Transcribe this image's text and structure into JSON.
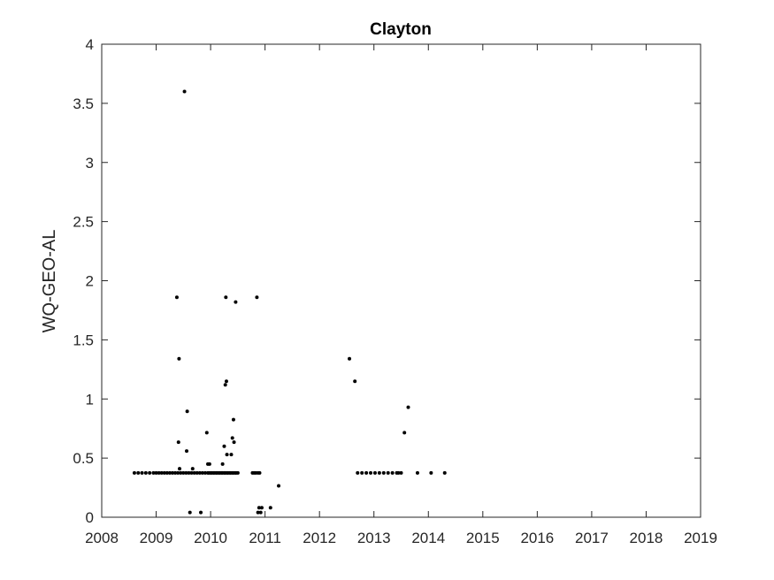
{
  "chart_data": {
    "type": "scatter",
    "title": "Clayton",
    "xlabel": "",
    "ylabel": "WQ-GEO-AL",
    "xlim": [
      2008,
      2019
    ],
    "ylim": [
      0,
      4
    ],
    "xticks": [
      "2008",
      "2009",
      "2010",
      "2011",
      "2012",
      "2013",
      "2014",
      "2015",
      "2016",
      "2017",
      "2018",
      "2019"
    ],
    "yticks": [
      "0",
      "0.5",
      "1",
      "1.5",
      "2",
      "2.5",
      "3",
      "3.5",
      "4"
    ],
    "grid": false,
    "marker_color": "#000000",
    "points": [
      [
        2008.6,
        0.375
      ],
      [
        2008.67,
        0.375
      ],
      [
        2008.74,
        0.375
      ],
      [
        2008.81,
        0.375
      ],
      [
        2008.88,
        0.375
      ],
      [
        2008.95,
        0.375
      ],
      [
        2009.0,
        0.375
      ],
      [
        2009.05,
        0.375
      ],
      [
        2009.1,
        0.375
      ],
      [
        2009.15,
        0.375
      ],
      [
        2009.2,
        0.375
      ],
      [
        2009.25,
        0.375
      ],
      [
        2009.3,
        0.375
      ],
      [
        2009.35,
        0.375
      ],
      [
        2009.4,
        0.375
      ],
      [
        2009.45,
        0.375
      ],
      [
        2009.5,
        0.375
      ],
      [
        2009.55,
        0.375
      ],
      [
        2009.6,
        0.375
      ],
      [
        2009.65,
        0.375
      ],
      [
        2009.7,
        0.375
      ],
      [
        2009.75,
        0.375
      ],
      [
        2009.8,
        0.375
      ],
      [
        2009.85,
        0.375
      ],
      [
        2009.9,
        0.375
      ],
      [
        2009.95,
        0.375
      ],
      [
        2009.97,
        0.375
      ],
      [
        2010.0,
        0.375
      ],
      [
        2010.02,
        0.375
      ],
      [
        2010.05,
        0.375
      ],
      [
        2010.07,
        0.375
      ],
      [
        2010.1,
        0.375
      ],
      [
        2010.12,
        0.375
      ],
      [
        2010.15,
        0.375
      ],
      [
        2010.17,
        0.375
      ],
      [
        2010.2,
        0.375
      ],
      [
        2010.22,
        0.375
      ],
      [
        2010.25,
        0.375
      ],
      [
        2010.27,
        0.375
      ],
      [
        2010.3,
        0.375
      ],
      [
        2010.32,
        0.375
      ],
      [
        2010.35,
        0.375
      ],
      [
        2010.37,
        0.375
      ],
      [
        2010.4,
        0.375
      ],
      [
        2010.42,
        0.375
      ],
      [
        2010.45,
        0.375
      ],
      [
        2010.47,
        0.375
      ],
      [
        2010.5,
        0.375
      ],
      [
        2010.77,
        0.375
      ],
      [
        2010.8,
        0.375
      ],
      [
        2010.83,
        0.375
      ],
      [
        2010.87,
        0.375
      ],
      [
        2010.9,
        0.375
      ],
      [
        2009.38,
        1.86
      ],
      [
        2009.42,
        1.34
      ],
      [
        2009.41,
        0.635
      ],
      [
        2009.43,
        0.41
      ],
      [
        2009.52,
        3.6
      ],
      [
        2009.56,
        0.56
      ],
      [
        2009.57,
        0.895
      ],
      [
        2009.62,
        0.04
      ],
      [
        2009.67,
        0.41
      ],
      [
        2009.82,
        0.04
      ],
      [
        2009.93,
        0.715
      ],
      [
        2009.95,
        0.45
      ],
      [
        2009.98,
        0.45
      ],
      [
        2010.22,
        0.45
      ],
      [
        2010.25,
        0.6
      ],
      [
        2010.27,
        1.12
      ],
      [
        2010.28,
        1.86
      ],
      [
        2010.29,
        1.15
      ],
      [
        2010.3,
        0.53
      ],
      [
        2010.38,
        0.53
      ],
      [
        2010.4,
        0.67
      ],
      [
        2010.42,
        0.825
      ],
      [
        2010.43,
        0.635
      ],
      [
        2010.46,
        1.82
      ],
      [
        2010.85,
        1.86
      ],
      [
        2010.87,
        0.04
      ],
      [
        2010.89,
        0.08
      ],
      [
        2010.92,
        0.04
      ],
      [
        2010.94,
        0.08
      ],
      [
        2011.1,
        0.08
      ],
      [
        2011.25,
        0.265
      ],
      [
        2012.55,
        1.34
      ],
      [
        2012.65,
        1.15
      ],
      [
        2012.7,
        0.375
      ],
      [
        2012.78,
        0.375
      ],
      [
        2012.86,
        0.375
      ],
      [
        2012.94,
        0.375
      ],
      [
        2013.02,
        0.375
      ],
      [
        2013.1,
        0.375
      ],
      [
        2013.18,
        0.375
      ],
      [
        2013.26,
        0.375
      ],
      [
        2013.34,
        0.375
      ],
      [
        2013.42,
        0.375
      ],
      [
        2013.45,
        0.375
      ],
      [
        2013.5,
        0.375
      ],
      [
        2013.56,
        0.715
      ],
      [
        2013.63,
        0.93
      ],
      [
        2013.8,
        0.375
      ],
      [
        2014.05,
        0.375
      ],
      [
        2014.3,
        0.375
      ]
    ]
  }
}
